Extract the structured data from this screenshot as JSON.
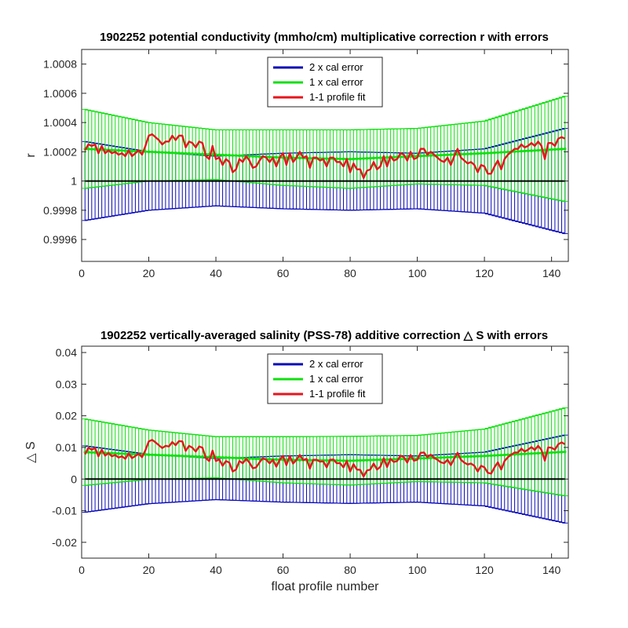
{
  "chart_data": [
    {
      "type": "line",
      "title": "1902252 potential conductivity (mmho/cm) multiplicative correction r with errors",
      "xlabel": "",
      "ylabel": "r",
      "xlim": [
        0,
        145
      ],
      "ylim": [
        0.99945,
        1.0009
      ],
      "xticks": [
        0,
        20,
        40,
        60,
        80,
        100,
        120,
        140
      ],
      "xtick_labels": [
        "0",
        "20",
        "40",
        "60",
        "80",
        "100",
        "120",
        "140"
      ],
      "yticks": [
        0.9996,
        0.9998,
        1.0,
        1.0002,
        1.0004,
        1.0006,
        1.0008
      ],
      "ytick_labels": [
        "0.9996",
        "0.9998",
        "1",
        "1.0002",
        "1.0004",
        "1.0006",
        "1.0008"
      ],
      "legend": {
        "position": "top-center",
        "entries": [
          "2 x cal error",
          "1 x cal error",
          "1-1 profile fit"
        ]
      },
      "reference_line": 1.0,
      "fit_profiles": [
        1,
        2,
        3,
        4,
        5,
        6,
        7,
        8,
        9,
        10,
        11,
        12,
        13,
        14,
        15,
        16,
        17,
        18,
        19,
        20,
        21,
        22,
        23,
        24,
        25,
        26,
        27,
        28,
        29,
        30,
        31,
        32,
        33,
        34,
        35,
        36,
        37,
        38,
        39,
        40,
        41,
        42,
        43,
        44,
        45,
        46,
        47,
        48,
        49,
        50,
        51,
        52,
        53,
        54,
        55,
        56,
        57,
        58,
        59,
        60,
        61,
        62,
        63,
        64,
        65,
        66,
        67,
        68,
        69,
        70,
        71,
        72,
        73,
        74,
        75,
        76,
        77,
        78,
        79,
        80,
        81,
        82,
        83,
        84,
        85,
        86,
        87,
        88,
        89,
        90,
        91,
        92,
        93,
        94,
        95,
        96,
        97,
        98,
        99,
        100,
        101,
        102,
        103,
        104,
        105,
        106,
        107,
        108,
        109,
        110,
        111,
        112,
        113,
        114,
        115,
        116,
        117,
        118,
        119,
        120,
        121,
        122,
        123,
        124,
        125,
        126,
        127,
        128,
        129,
        130,
        131,
        132,
        133,
        134,
        135,
        136,
        137,
        138,
        139,
        140,
        141,
        142,
        143,
        144
      ],
      "series": [
        {
          "name": "1-1 profile fit",
          "color": "#e8141c",
          "y": [
            1.00021,
            1.00025,
            1.00024,
            1.00025,
            1.00019,
            1.00024,
            1.00019,
            1.00021,
            1.00019,
            1.0002,
            1.00018,
            1.00019,
            1.00017,
            1.00021,
            1.00017,
            1.00019,
            1.00021,
            1.00018,
            1.00024,
            1.00031,
            1.00032,
            1.0003,
            1.00028,
            1.00025,
            1.00027,
            1.00027,
            1.00031,
            1.00028,
            1.00031,
            1.00031,
            1.00023,
            1.00027,
            1.00026,
            1.00023,
            1.00027,
            1.00026,
            1.00017,
            1.00015,
            1.00024,
            1.00015,
            1.00016,
            1.00011,
            1.00015,
            1.00013,
            1.00006,
            1.00008,
            1.00015,
            1.00013,
            1.00017,
            1.00014,
            1.00009,
            1.0001,
            1.00014,
            1.00017,
            1.00016,
            1.00013,
            1.00016,
            1.0001,
            1.00016,
            1.00019,
            1.00011,
            1.00019,
            1.00013,
            1.00016,
            1.0002,
            1.00016,
            1.00017,
            1.00009,
            1.00016,
            1.00016,
            1.00014,
            1.00015,
            1.0001,
            1.00016,
            1.00016,
            1.00013,
            1.00013,
            1.0001,
            1.00015,
            1.00006,
            1.00012,
            1.00008,
            1.00008,
            1.00002,
            1.00007,
            1.00008,
            1.00013,
            1.00008,
            1.0001,
            1.00017,
            1.0001,
            1.00017,
            1.00014,
            1.00015,
            1.00019,
            1.00018,
            1.00014,
            1.0002,
            1.00015,
            1.00016,
            1.00022,
            1.00022,
            1.00018,
            1.0002,
            1.00018,
            1.00016,
            1.00014,
            1.00013,
            1.00016,
            1.00011,
            1.00017,
            1.00022,
            1.00016,
            1.00014,
            1.00012,
            1.00013,
            1.00011,
            1.00006,
            1.00011,
            1.0001,
            1.00005,
            1.00005,
            1.0001,
            1.00014,
            1.00008,
            1.00015,
            1.00018,
            1.0002,
            1.00022,
            1.00022,
            1.00025,
            1.00023,
            1.00024,
            1.00026,
            1.00024,
            1.00027,
            1.00024,
            1.00015,
            1.00026,
            1.00026,
            1.00024,
            1.00029,
            1.0003,
            1.00029
          ]
        },
        {
          "name": "1 x cal error",
          "color": "#10e010",
          "line": {
            "x": [
              1,
              20,
              40,
              60,
              80,
              100,
              120,
              144
            ],
            "y": [
              1.00022,
              1.0002,
              1.00018,
              1.00016,
              1.00015,
              1.00017,
              1.00019,
              1.00022
            ]
          },
          "half_width": {
            "x": [
              1,
              20,
              40,
              60,
              80,
              100,
              120,
              144
            ],
            "y": [
              0.00027,
              0.0002,
              0.00017,
              0.00019,
              0.0002,
              0.00019,
              0.00022,
              0.00036
            ]
          }
        },
        {
          "name": "2 x cal error",
          "color": "#0a0ab8",
          "line": {
            "x": [
              1,
              20,
              40,
              60,
              80,
              100,
              120,
              144
            ],
            "y": [
              1.0,
              1.0,
              1.0,
              1.0,
              1.0,
              1.0,
              1.0,
              1.0
            ]
          },
          "half_width": {
            "x": [
              1,
              20,
              40,
              60,
              80,
              100,
              120,
              144
            ],
            "y": [
              0.00027,
              0.0002,
              0.00017,
              0.00019,
              0.0002,
              0.00019,
              0.00022,
              0.00036
            ]
          }
        }
      ]
    },
    {
      "type": "line",
      "title": "1902252 vertically-averaged salinity (PSS-78) additive correction △ S with errors",
      "xlabel": "float profile number",
      "ylabel": "△ S",
      "xlim": [
        0,
        145
      ],
      "ylim": [
        -0.025,
        0.042
      ],
      "xticks": [
        0,
        20,
        40,
        60,
        80,
        100,
        120,
        140
      ],
      "xtick_labels": [
        "0",
        "20",
        "40",
        "60",
        "80",
        "100",
        "120",
        "140"
      ],
      "yticks": [
        -0.02,
        -0.01,
        0,
        0.01,
        0.02,
        0.03,
        0.04
      ],
      "ytick_labels": [
        "-0.02",
        "-0.01",
        "0",
        "0.01",
        "0.02",
        "0.03",
        "0.04"
      ],
      "legend": {
        "position": "top-center",
        "entries": [
          "2 x cal error",
          "1 x cal error",
          "1-1 profile fit"
        ]
      },
      "reference_line": 0,
      "fit_profiles": [
        1,
        2,
        3,
        4,
        5,
        6,
        7,
        8,
        9,
        10,
        11,
        12,
        13,
        14,
        15,
        16,
        17,
        18,
        19,
        20,
        21,
        22,
        23,
        24,
        25,
        26,
        27,
        28,
        29,
        30,
        31,
        32,
        33,
        34,
        35,
        36,
        37,
        38,
        39,
        40,
        41,
        42,
        43,
        44,
        45,
        46,
        47,
        48,
        49,
        50,
        51,
        52,
        53,
        54,
        55,
        56,
        57,
        58,
        59,
        60,
        61,
        62,
        63,
        64,
        65,
        66,
        67,
        68,
        69,
        70,
        71,
        72,
        73,
        74,
        75,
        76,
        77,
        78,
        79,
        80,
        81,
        82,
        83,
        84,
        85,
        86,
        87,
        88,
        89,
        90,
        91,
        92,
        93,
        94,
        95,
        96,
        97,
        98,
        99,
        100,
        101,
        102,
        103,
        104,
        105,
        106,
        107,
        108,
        109,
        110,
        111,
        112,
        113,
        114,
        115,
        116,
        117,
        118,
        119,
        120,
        121,
        122,
        123,
        124,
        125,
        126,
        127,
        128,
        129,
        130,
        131,
        132,
        133,
        134,
        135,
        136,
        137,
        138,
        139,
        140,
        141,
        142,
        143,
        144
      ],
      "series": [
        {
          "name": "1-1 profile fit",
          "color": "#e8141c",
          "y": [
            0.0078,
            0.0099,
            0.0093,
            0.0098,
            0.0072,
            0.0093,
            0.0074,
            0.0082,
            0.0072,
            0.0076,
            0.0068,
            0.0072,
            0.0064,
            0.0081,
            0.0066,
            0.0073,
            0.008,
            0.0069,
            0.0091,
            0.0119,
            0.0124,
            0.0116,
            0.0107,
            0.0098,
            0.0105,
            0.0103,
            0.0117,
            0.0107,
            0.012,
            0.0119,
            0.0089,
            0.0105,
            0.0099,
            0.0087,
            0.0103,
            0.0099,
            0.0066,
            0.0057,
            0.009,
            0.0057,
            0.0062,
            0.0042,
            0.0057,
            0.0052,
            0.0024,
            0.003,
            0.0057,
            0.005,
            0.0064,
            0.0052,
            0.0034,
            0.0037,
            0.0053,
            0.0066,
            0.0061,
            0.005,
            0.0061,
            0.0039,
            0.0061,
            0.0073,
            0.0044,
            0.0073,
            0.0049,
            0.0061,
            0.0076,
            0.006,
            0.0064,
            0.0033,
            0.0061,
            0.0061,
            0.0055,
            0.0056,
            0.0037,
            0.0061,
            0.0062,
            0.005,
            0.005,
            0.0037,
            0.0057,
            0.0024,
            0.0047,
            0.003,
            0.0029,
            0.0008,
            0.0027,
            0.003,
            0.0049,
            0.003,
            0.0039,
            0.0066,
            0.0038,
            0.0064,
            0.0054,
            0.0057,
            0.0074,
            0.0069,
            0.0052,
            0.0076,
            0.0058,
            0.0061,
            0.0083,
            0.0084,
            0.0069,
            0.0077,
            0.0067,
            0.0061,
            0.0053,
            0.005,
            0.0061,
            0.0044,
            0.0065,
            0.0083,
            0.0061,
            0.0052,
            0.0046,
            0.0049,
            0.0042,
            0.0024,
            0.0042,
            0.0037,
            0.002,
            0.0017,
            0.0037,
            0.0053,
            0.003,
            0.0057,
            0.0069,
            0.0077,
            0.0084,
            0.0084,
            0.0096,
            0.0087,
            0.0093,
            0.0101,
            0.0092,
            0.0105,
            0.0092,
            0.0058,
            0.01,
            0.0099,
            0.0093,
            0.011,
            0.0116,
            0.011
          ]
        },
        {
          "name": "1 x cal error",
          "color": "#10e010",
          "line": {
            "x": [
              1,
              20,
              40,
              60,
              80,
              100,
              120,
              144
            ],
            "y": [
              0.0085,
              0.0077,
              0.0069,
              0.0061,
              0.0058,
              0.0065,
              0.0073,
              0.0086
            ]
          },
          "half_width": {
            "x": [
              1,
              20,
              40,
              60,
              80,
              100,
              120,
              144
            ],
            "y": [
              0.0105,
              0.0078,
              0.0065,
              0.0073,
              0.0077,
              0.0073,
              0.0085,
              0.0139
            ]
          }
        },
        {
          "name": "2 x cal error",
          "color": "#0a0ab8",
          "line": {
            "x": [
              1,
              20,
              40,
              60,
              80,
              100,
              120,
              144
            ],
            "y": [
              0,
              0,
              0,
              0,
              0,
              0,
              0,
              0
            ]
          },
          "half_width": {
            "x": [
              1,
              20,
              40,
              60,
              80,
              100,
              120,
              144
            ],
            "y": [
              0.0105,
              0.0078,
              0.0065,
              0.0073,
              0.0077,
              0.0073,
              0.0085,
              0.0139
            ]
          }
        }
      ]
    }
  ]
}
